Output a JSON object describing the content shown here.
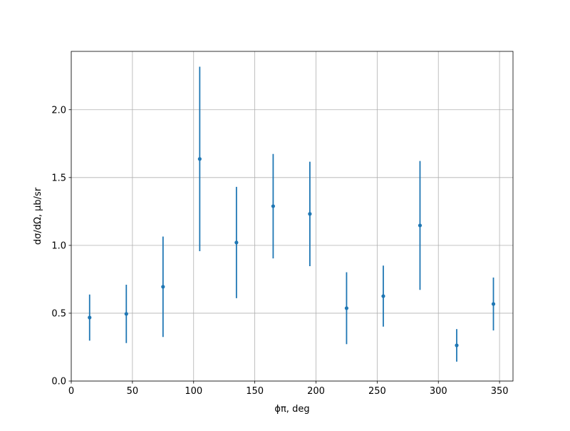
{
  "chart_data": {
    "type": "errorbar",
    "xlabel": "ϕπ, deg",
    "ylabel": "dσ/dΩ, μb/sr",
    "x": [
      15,
      45,
      75,
      105,
      135,
      165,
      195,
      225,
      255,
      285,
      315,
      345
    ],
    "values": [
      0.468,
      0.495,
      0.695,
      1.637,
      1.021,
      1.289,
      1.232,
      0.537,
      0.626,
      1.147,
      0.263,
      0.568
    ],
    "errors": [
      0.17,
      0.215,
      0.37,
      0.68,
      0.41,
      0.385,
      0.385,
      0.265,
      0.225,
      0.475,
      0.12,
      0.195
    ],
    "color": "#1f77b4",
    "xlim": [
      0,
      361
    ],
    "ylim": [
      0,
      2.43
    ],
    "xticks": [
      0,
      50,
      100,
      150,
      200,
      250,
      300,
      350
    ],
    "yticks": [
      {
        "value": 0,
        "label": "0.0"
      },
      {
        "value": 0.5,
        "label": "0.5"
      },
      {
        "value": 1,
        "label": "1.0"
      },
      {
        "value": 1.5,
        "label": "1.5"
      },
      {
        "value": 2,
        "label": "2.0"
      }
    ],
    "grid": true
  }
}
